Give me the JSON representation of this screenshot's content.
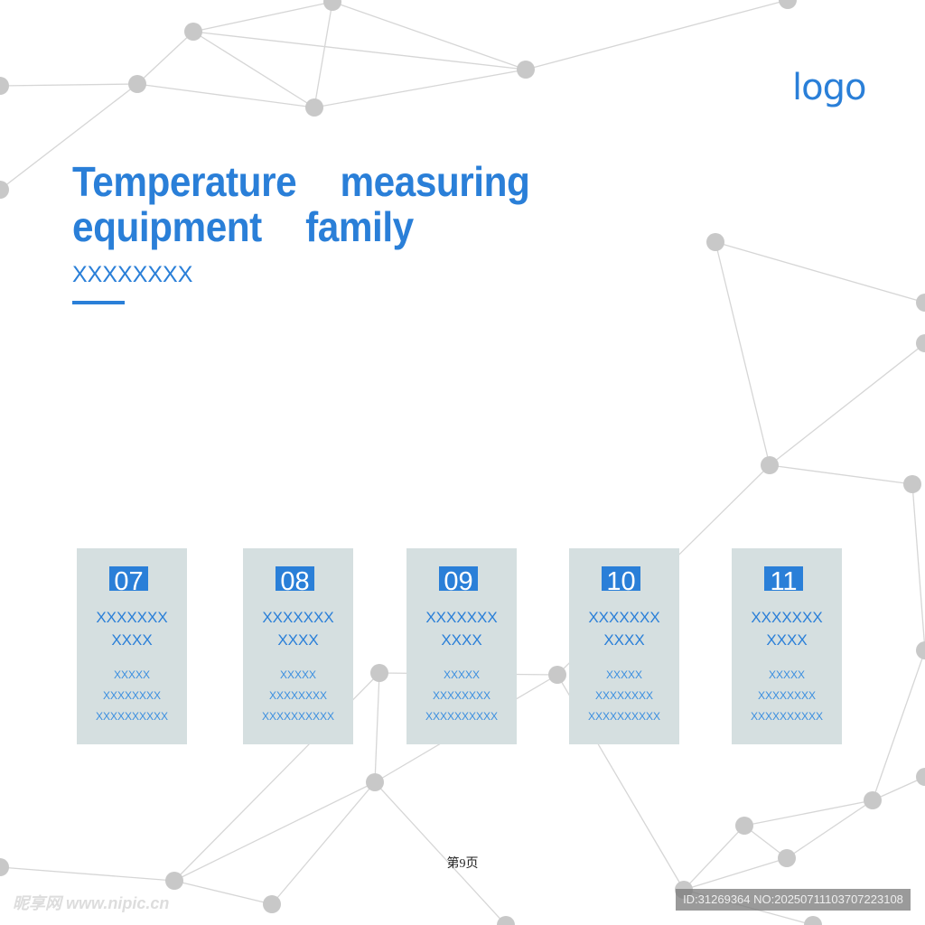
{
  "logo": "logo",
  "title": "Temperature  measuring\nequipment  family",
  "subtitle": "XXXXXXXX",
  "cards": [
    {
      "number": "07",
      "heading1": "XXXXXXX",
      "heading2": "XXXX",
      "lines": [
        "XXXXX",
        "XXXXXXXX",
        "XXXXXXXXXX"
      ]
    },
    {
      "number": "08",
      "heading1": "XXXXXXX",
      "heading2": "XXXX",
      "lines": [
        "XXXXX",
        "XXXXXXXX",
        "XXXXXXXXXX"
      ]
    },
    {
      "number": "09",
      "heading1": "XXXXXXX",
      "heading2": "XXXX",
      "lines": [
        "XXXXX",
        "XXXXXXXX",
        "XXXXXXXXXX"
      ]
    },
    {
      "number": "10",
      "heading1": "XXXXXXX",
      "heading2": "XXXX",
      "lines": [
        "XXXXX",
        "XXXXXXXX",
        "XXXXXXXXXX"
      ]
    },
    {
      "number": "11",
      "heading1": "XXXXXXX",
      "heading2": "XXXX",
      "lines": [
        "XXXXX",
        "XXXXXXXX",
        "XXXXXXXXXX"
      ]
    }
  ],
  "page_label": "第9页",
  "watermark": "昵享网 www.nipic.cn",
  "image_id": "ID:31269364 NO:20250711103707223108",
  "colors": {
    "accent": "#2a7fd8",
    "card_bg": "#d5dfe0",
    "node": "#c8c8c8"
  }
}
